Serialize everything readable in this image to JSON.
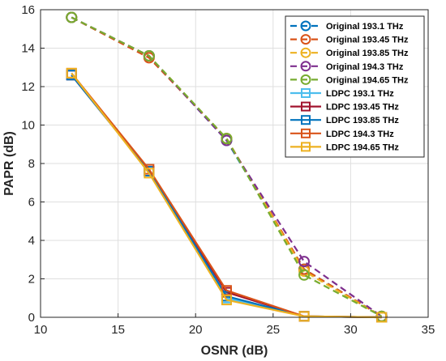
{
  "chart_data": {
    "type": "line",
    "xlabel": "OSNR (dB)",
    "ylabel": "PAPR (dB)",
    "xlim": [
      10,
      35
    ],
    "ylim": [
      0,
      16
    ],
    "xticks": [
      "10",
      "15",
      "20",
      "25",
      "30",
      "35"
    ],
    "yticks": [
      "0",
      "2",
      "4",
      "6",
      "8",
      "10",
      "12",
      "14",
      "16"
    ],
    "grid": true,
    "legend_position": "top-right",
    "series": [
      {
        "name": "Original 193.1 THz",
        "color": "#0072BD",
        "style": "dashed",
        "marker": "circle",
        "x": [
          12,
          17,
          22,
          27,
          32
        ],
        "y": [
          15.6,
          13.6,
          9.2,
          2.5,
          0.05
        ]
      },
      {
        "name": "Original 193.45 THz",
        "color": "#D95319",
        "style": "dashed",
        "marker": "circle",
        "x": [
          12,
          17,
          22,
          27,
          32
        ],
        "y": [
          15.6,
          13.5,
          9.3,
          2.5,
          0.05
        ]
      },
      {
        "name": "Original 193.85 THz",
        "color": "#EDB120",
        "style": "dashed",
        "marker": "circle",
        "x": [
          12,
          17,
          22,
          27,
          32
        ],
        "y": [
          15.6,
          13.6,
          9.3,
          2.4,
          0.05
        ]
      },
      {
        "name": "Original 194.3 THz",
        "color": "#7E2F8E",
        "style": "dashed",
        "marker": "circle",
        "x": [
          12,
          17,
          22,
          27,
          32
        ],
        "y": [
          15.6,
          13.6,
          9.2,
          2.9,
          0.05
        ]
      },
      {
        "name": "Original 194.65 THz",
        "color": "#77AC30",
        "style": "dashed",
        "marker": "circle",
        "x": [
          12,
          17,
          22,
          27,
          32
        ],
        "y": [
          15.6,
          13.6,
          9.3,
          2.2,
          0.05
        ]
      },
      {
        "name": "LDPC 193.1 THz",
        "color": "#4DBEEE",
        "style": "solid",
        "marker": "square",
        "x": [
          12,
          17,
          22,
          27,
          32
        ],
        "y": [
          12.6,
          7.6,
          1.0,
          0.05,
          0.0
        ]
      },
      {
        "name": "LDPC 193.45 THz",
        "color": "#A2142F",
        "style": "solid",
        "marker": "square",
        "x": [
          12,
          17,
          22,
          27,
          32
        ],
        "y": [
          12.6,
          7.6,
          1.3,
          0.05,
          0.0
        ]
      },
      {
        "name": "LDPC 193.85 THz",
        "color": "#0072BD",
        "style": "solid",
        "marker": "square",
        "x": [
          12,
          17,
          22,
          27,
          32
        ],
        "y": [
          12.6,
          7.6,
          1.1,
          0.05,
          0.0
        ]
      },
      {
        "name": "LDPC 194.3 THz",
        "color": "#D95319",
        "style": "solid",
        "marker": "square",
        "x": [
          12,
          17,
          22,
          27,
          32
        ],
        "y": [
          12.7,
          7.7,
          1.4,
          0.05,
          0.0
        ]
      },
      {
        "name": "LDPC 194.65 THz",
        "color": "#EDB120",
        "style": "solid",
        "marker": "square",
        "x": [
          12,
          17,
          22,
          27,
          32
        ],
        "y": [
          12.7,
          7.5,
          0.9,
          0.05,
          0.0
        ]
      }
    ]
  }
}
